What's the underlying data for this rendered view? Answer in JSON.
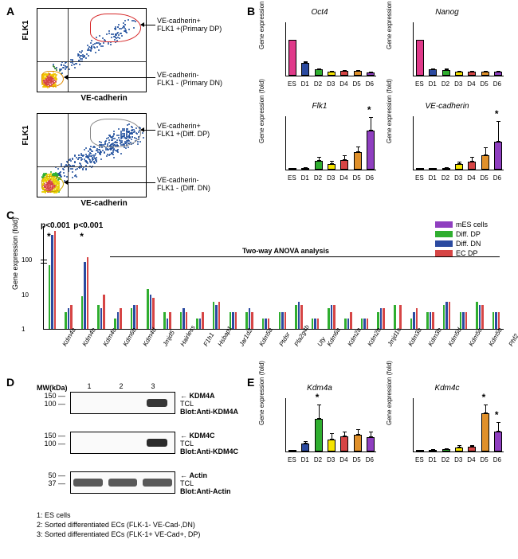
{
  "A": {
    "label": "A",
    "y_axis": "FLK1",
    "x_axis": "VE-cadherin",
    "top_scatter": {
      "annotation_dp": "VE-cadherin+\nFLK1 +(Primary DP)",
      "annotation_dn": "VE-cadherin-\nFLK1  - (Primary  DN)",
      "gate_dp_color": "#d62728",
      "gate_dn_color": "#e08b00",
      "density_colors": [
        "#1f4e9c",
        "#2a7e2a",
        "#f0c400",
        "#d64545",
        "#222"
      ]
    },
    "bottom_scatter": {
      "annotation_dp": "VE-cadherin+\nFLK1 +(Diff. DP)",
      "annotation_dn": "VE-cadherin-\nFLK1  - (Diff.  DN)",
      "gate_dp_color": "#888",
      "gate_dn_color": "#c9a400",
      "density_colors": [
        "#1f4e9c",
        "#2fae2f",
        "#e8d000",
        "#d64545",
        "#222"
      ]
    }
  },
  "B": {
    "label": "B",
    "ylabel": "Gene expression (fold)",
    "categories": [
      "ES",
      "D1",
      "D2",
      "D3",
      "D4",
      "D5",
      "D6"
    ],
    "colors": {
      "ES": "#e03a8a",
      "D1": "#2b4aa0",
      "D2": "#2fae2f",
      "D3": "#f5e400",
      "D4": "#d64545",
      "D5": "#e0902a",
      "D6": "#8f3fc0"
    },
    "charts": [
      {
        "title": "Oct4",
        "ylim": [
          0,
          1.5
        ],
        "values": [
          1.0,
          0.36,
          0.17,
          0.12,
          0.14,
          0.13,
          0.09
        ],
        "err": [
          0,
          0.04,
          0.02,
          0.02,
          0.02,
          0.02,
          0.02
        ]
      },
      {
        "title": "Nanog",
        "ylim": [
          0,
          1.5
        ],
        "values": [
          1.0,
          0.18,
          0.16,
          0.11,
          0.1,
          0.12,
          0.11
        ],
        "err": [
          0,
          0.02,
          0.04,
          0.02,
          0.02,
          0.02,
          0.02
        ]
      },
      {
        "title": "Flk1",
        "ylim": [
          0,
          600
        ],
        "values": [
          5,
          20,
          100,
          65,
          105,
          190,
          430
        ],
        "err": [
          5,
          10,
          40,
          30,
          50,
          70,
          150
        ],
        "star_index": 6
      },
      {
        "title": "VE-cadherin",
        "ylim": [
          0,
          3000
        ],
        "values": [
          10,
          30,
          70,
          300,
          460,
          800,
          1550
        ],
        "err": [
          5,
          15,
          30,
          150,
          250,
          450,
          1150
        ],
        "star_index": 6
      }
    ]
  },
  "C": {
    "label": "C",
    "ylabel": "Gene expression (fold)",
    "legend": [
      {
        "name": "mES cells",
        "color": "#8f3fc0"
      },
      {
        "name": "Diff. DP",
        "color": "#2fae2f"
      },
      {
        "name": "Diff. DN",
        "color": "#2b4aa0"
      },
      {
        "name": "EC DP",
        "color": "#d64545"
      }
    ],
    "ylim_log": [
      1,
      1000
    ],
    "yticks": [
      1,
      10,
      100
    ],
    "anova_label": "Two-way ANOVA analysis",
    "pvals": [
      {
        "text": "p<0.001",
        "gene": "Kdm4a"
      },
      {
        "text": "p<0.001",
        "gene": "Kdm4c"
      }
    ],
    "genes": [
      "Kdm4a",
      "Kdm4b",
      "Kdm4c",
      "Kdm6b",
      "Kdm4d",
      "Jmjd5",
      "Hairless",
      "F1h1",
      "Hsbap1",
      "Jar1d2",
      "Kdm5a",
      "Ptdsr",
      "Pla2g4b",
      "Uty",
      "Kdm6a",
      "Kdm2a",
      "Kdm2b",
      "Jmjd1c",
      "Kdm3a",
      "Kdm3b",
      "Kdm5d",
      "Kdm5c",
      "Kdm5b",
      "Phf2",
      "Phf8",
      "Kiaa1718",
      "Loc339123",
      "Jmjd4"
    ],
    "values": {
      "Kdm4a": [
        1,
        70,
        520,
        680
      ],
      "Kdm4b": [
        1,
        3,
        4,
        5
      ],
      "Kdm4c": [
        1,
        9,
        85,
        120
      ],
      "Kdm6b": [
        1,
        5,
        4,
        10
      ],
      "Kdm4d": [
        1,
        2,
        3,
        4
      ],
      "Jmjd5": [
        1,
        4,
        5,
        5
      ],
      "Hairless": [
        1,
        14,
        10,
        8
      ],
      "F1h1": [
        1,
        3,
        2,
        3
      ],
      "Hsbap1": [
        1,
        3,
        4,
        3
      ],
      "Jar1d2": [
        1,
        2,
        2,
        3
      ],
      "Kdm5a": [
        1,
        6,
        5,
        6
      ],
      "Ptdsr": [
        1,
        3,
        3,
        3
      ],
      "Pla2g4b": [
        1,
        3,
        4,
        3
      ],
      "Uty": [
        1,
        2,
        2,
        2
      ],
      "Kdm6a": [
        1,
        3,
        3,
        3
      ],
      "Kdm2a": [
        1,
        5,
        6,
        5
      ],
      "Kdm2b": [
        1,
        2,
        2,
        2
      ],
      "Jmjd1c": [
        1,
        4,
        5,
        5
      ],
      "Kdm3a": [
        1,
        2,
        2,
        3
      ],
      "Kdm3b": [
        1,
        2,
        2,
        2
      ],
      "Kdm5d": [
        1,
        3,
        4,
        4
      ],
      "Kdm5c": [
        1,
        5,
        1,
        5
      ],
      "Kdm5b": [
        1,
        2,
        3,
        4
      ],
      "Phf2": [
        1,
        3,
        3,
        3
      ],
      "Phf8": [
        1,
        5,
        6,
        6
      ],
      "Kiaa1718": [
        1,
        3,
        3,
        3
      ],
      "Loc339123": [
        1,
        6,
        5,
        5
      ],
      "Jmjd4": [
        1,
        3,
        3,
        3
      ]
    }
  },
  "D": {
    "label": "D",
    "mw_header": "MW(kDa)",
    "lane_numbers": [
      "1",
      "2",
      "3"
    ],
    "rows": [
      {
        "mw": [
          "150 —",
          "100 —"
        ],
        "target": "KDM4A",
        "lines": [
          "TCL",
          "Blot:Anti-KDM4A"
        ],
        "bands": [
          {
            "lane": 2,
            "intensity": 0.85
          }
        ]
      },
      {
        "mw": [
          "150 —",
          "100 —"
        ],
        "target": "KDM4C",
        "lines": [
          "TCL",
          "Blot:Anti-KDM4C"
        ],
        "bands": [
          {
            "lane": 2,
            "intensity": 0.9
          }
        ]
      },
      {
        "mw": [
          "50 —",
          "37 —"
        ],
        "target": "Actin",
        "lines": [
          "TCL",
          "Blot:Anti-Actin"
        ],
        "bands": [
          {
            "lane": 0,
            "intensity": 0.7,
            "wide": true
          },
          {
            "lane": 1,
            "intensity": 0.7,
            "wide": true
          },
          {
            "lane": 2,
            "intensity": 0.7,
            "wide": true
          }
        ]
      }
    ],
    "lane_legend": [
      "1: ES cells",
      "2: Sorted differentiated ECs (FLK-1- VE-Cad-,DN)",
      "3: Sorted differentiated ECs (FLK-1+ VE-Cad+, DP)"
    ]
  },
  "E": {
    "label": "E",
    "ylabel": "Gene expression (fold)",
    "categories": [
      "ES",
      "D1",
      "D2",
      "D3",
      "D4",
      "D5",
      "D6"
    ],
    "colors": {
      "ES": "#e03a8a",
      "D1": "#2b4aa0",
      "D2": "#2fae2f",
      "D3": "#f5e400",
      "D4": "#d64545",
      "D5": "#e0902a",
      "D6": "#8f3fc0"
    },
    "charts": [
      {
        "title": "Kdm4a",
        "ylim": [
          0,
          80
        ],
        "values": [
          1,
          12,
          48,
          18,
          22,
          25,
          21
        ],
        "err": [
          0,
          3,
          22,
          9,
          8,
          8,
          8
        ],
        "star_indices": [
          2
        ]
      },
      {
        "title": "Kdm4c",
        "ylim": [
          0,
          80
        ],
        "values": [
          1,
          2,
          3,
          6,
          7,
          56,
          29
        ],
        "err": [
          0,
          1,
          2,
          3,
          3,
          14,
          14
        ],
        "star_indices": [
          5,
          6
        ]
      }
    ]
  }
}
